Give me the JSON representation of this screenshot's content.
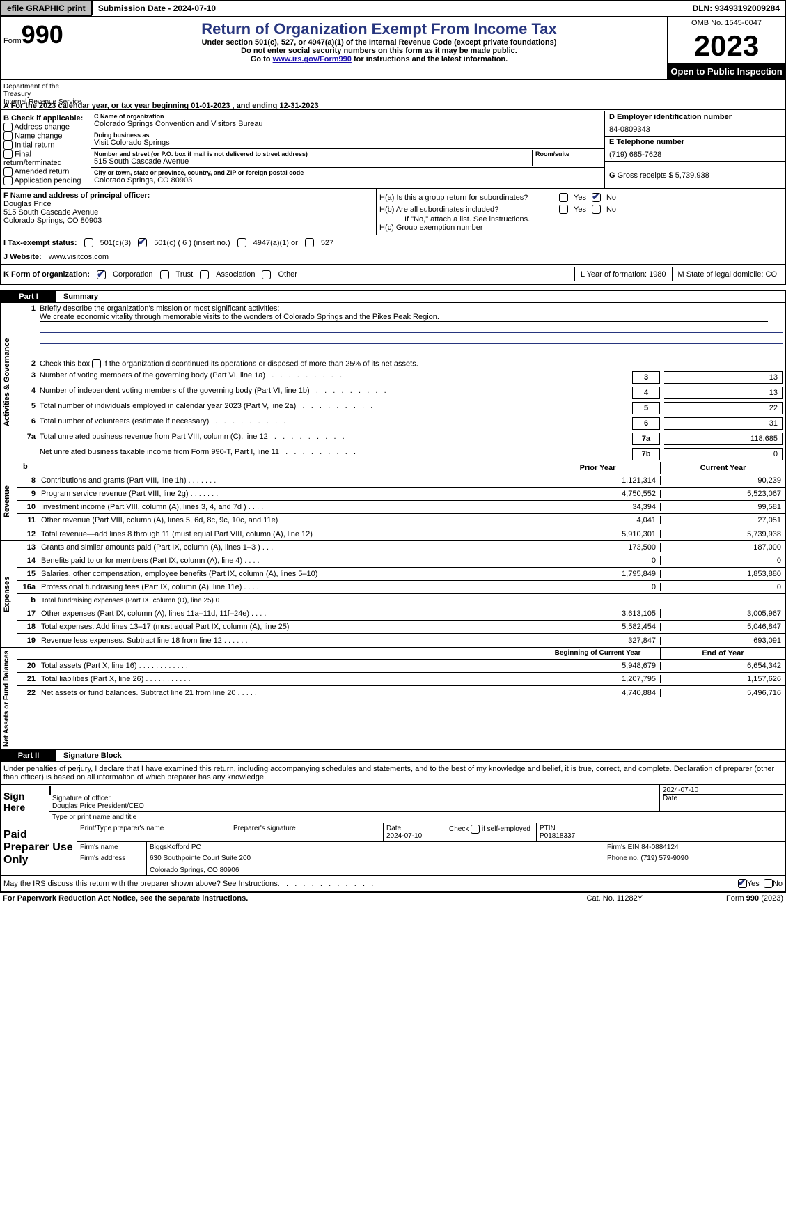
{
  "topbar": {
    "efile": "efile GRAPHIC print",
    "submission": "Submission Date - 2024-07-10",
    "dln": "DLN: 93493192009284"
  },
  "header": {
    "form_label": "Form",
    "form_num": "990",
    "title": "Return of Organization Exempt From Income Tax",
    "sub1": "Under section 501(c), 527, or 4947(a)(1) of the Internal Revenue Code (except private foundations)",
    "sub2": "Do not enter social security numbers on this form as it may be made public.",
    "sub3_pre": "Go to ",
    "sub3_link": "www.irs.gov/Form990",
    "sub3_post": " for instructions and the latest information.",
    "omb": "OMB No. 1545-0047",
    "year": "2023",
    "open": "Open to Public Inspection",
    "dept": "Department of the Treasury",
    "dept2": "Internal Revenue Service"
  },
  "row_a": "A For the 2023 calendar year, or tax year beginning 01-01-2023    , and ending 12-31-2023",
  "box_b": {
    "hdr": "B Check if applicable:",
    "opts": [
      "Address change",
      "Name change",
      "Initial return",
      "Final return/terminated",
      "Amended return",
      "Application pending"
    ]
  },
  "box_c": {
    "name_lbl": "C Name of organization",
    "name": "Colorado Springs Convention and Visitors Bureau",
    "dba_lbl": "Doing business as",
    "dba": "Visit Colorado Springs",
    "addr_lbl": "Number and street (or P.O. box if mail is not delivered to street address)",
    "room_lbl": "Room/suite",
    "addr": "515 South Cascade Avenue",
    "city_lbl": "City or town, state or province, country, and ZIP or foreign postal code",
    "city": "Colorado Springs, CO   80903"
  },
  "box_d": {
    "lbl": "D Employer identification number",
    "val": "84-0809343"
  },
  "box_e": {
    "lbl": "E Telephone number",
    "val": "(719) 685-7628"
  },
  "box_g": {
    "lbl": "G",
    "txt": "Gross receipts $ 5,739,938"
  },
  "box_f": {
    "lbl": "F  Name and address of principal officer:",
    "name": "Douglas Price",
    "addr1": "515 South Cascade Avenue",
    "addr2": "Colorado Springs, CO  80903"
  },
  "box_h": {
    "ha": "H(a)  Is this a group return for subordinates?",
    "hb": "H(b)  Are all subordinates included?",
    "hb_note": "If \"No,\" attach a list. See instructions.",
    "hc": "H(c)  Group exemption number",
    "yes": "Yes",
    "no": "No"
  },
  "tax_status": {
    "lbl": "I   Tax-exempt status:",
    "o1": "501(c)(3)",
    "o2": "501(c) ( 6 ) (insert no.)",
    "o3": "4947(a)(1) or",
    "o4": "527"
  },
  "website": {
    "lbl": "J   Website:",
    "val": "www.visitcos.com"
  },
  "row_k": {
    "lbl": "K Form of organization:",
    "opts": [
      "Corporation",
      "Trust",
      "Association",
      "Other"
    ],
    "l": "L Year of formation: 1980",
    "m": "M State of legal domicile: CO"
  },
  "part1": {
    "tab": "Part I",
    "title": "Summary"
  },
  "governance": {
    "label": "Activities & Governance",
    "l1_desc": "Briefly describe the organization's mission or most significant activities:",
    "l1_text": "We create economic vitality through memorable visits to the wonders of Colorado Springs and the Pikes Peak Region.",
    "l2": "Check this box        if the organization discontinued its operations or disposed of more than 25% of its net assets.",
    "lines": [
      {
        "n": "3",
        "d": "Number of voting members of the governing body (Part VI, line 1a)",
        "k": "3",
        "v": "13"
      },
      {
        "n": "4",
        "d": "Number of independent voting members of the governing body (Part VI, line 1b)",
        "k": "4",
        "v": "13"
      },
      {
        "n": "5",
        "d": "Total number of individuals employed in calendar year 2023 (Part V, line 2a)",
        "k": "5",
        "v": "22"
      },
      {
        "n": "6",
        "d": "Total number of volunteers (estimate if necessary)",
        "k": "6",
        "v": "31"
      },
      {
        "n": "7a",
        "d": "Total unrelated business revenue from Part VIII, column (C), line 12",
        "k": "7a",
        "v": "118,685"
      },
      {
        "n": "",
        "d": "Net unrelated business taxable income from Form 990-T, Part I, line 11",
        "k": "7b",
        "v": "0"
      }
    ]
  },
  "revenue": {
    "label": "Revenue",
    "hdr_b": "b",
    "hdr_prior": "Prior Year",
    "hdr_current": "Current Year",
    "lines": [
      {
        "n": "8",
        "d": "Contributions and grants (Part VIII, line 1h)   .    .    .    .    .    .    .",
        "a": "1,121,314",
        "b": "90,239"
      },
      {
        "n": "9",
        "d": "Program service revenue (Part VIII, line 2g)   .    .    .    .    .    .    .",
        "a": "4,750,552",
        "b": "5,523,067"
      },
      {
        "n": "10",
        "d": "Investment income (Part VIII, column (A), lines 3, 4, and 7d )   .    .    .    .",
        "a": "34,394",
        "b": "99,581"
      },
      {
        "n": "11",
        "d": "Other revenue (Part VIII, column (A), lines 5, 6d, 8c, 9c, 10c, and 11e)",
        "a": "4,041",
        "b": "27,051"
      },
      {
        "n": "12",
        "d": "Total revenue—add lines 8 through 11 (must equal Part VIII, column (A), line 12)",
        "a": "5,910,301",
        "b": "5,739,938"
      }
    ]
  },
  "expenses": {
    "label": "Expenses",
    "lines": [
      {
        "n": "13",
        "d": "Grants and similar amounts paid (Part IX, column (A), lines 1–3 )   .    .    .",
        "a": "173,500",
        "b": "187,000"
      },
      {
        "n": "14",
        "d": "Benefits paid to or for members (Part IX, column (A), line 4)   .    .    .    .",
        "a": "0",
        "b": "0"
      },
      {
        "n": "15",
        "d": "Salaries, other compensation, employee benefits (Part IX, column (A), lines 5–10)",
        "a": "1,795,849",
        "b": "1,853,880"
      },
      {
        "n": "16a",
        "d": "Professional fundraising fees (Part IX, column (A), line 11e)   .    .    .    .",
        "a": "0",
        "b": "0"
      },
      {
        "n": "b",
        "d": "Total fundraising expenses (Part IX, column (D), line 25) 0",
        "a": "",
        "b": "",
        "shaded": true,
        "small": true
      },
      {
        "n": "17",
        "d": "Other expenses (Part IX, column (A), lines 11a–11d, 11f–24e)   .    .    .    .",
        "a": "3,613,105",
        "b": "3,005,967"
      },
      {
        "n": "18",
        "d": "Total expenses. Add lines 13–17 (must equal Part IX, column (A), line 25)",
        "a": "5,582,454",
        "b": "5,046,847"
      },
      {
        "n": "19",
        "d": "Revenue less expenses. Subtract line 18 from line 12   .    .    .    .    .    .",
        "a": "327,847",
        "b": "693,091"
      }
    ]
  },
  "netassets": {
    "label": "Net Assets or Fund Balances",
    "hdr_a": "Beginning of Current Year",
    "hdr_b": "End of Year",
    "lines": [
      {
        "n": "20",
        "d": "Total assets (Part X, line 16)   .    .    .    .    .    .    .    .    .    .    .    .",
        "a": "5,948,679",
        "b": "6,654,342"
      },
      {
        "n": "21",
        "d": "Total liabilities (Part X, line 26)   .    .    .    .    .    .    .    .    .    .    .",
        "a": "1,207,795",
        "b": "1,157,626"
      },
      {
        "n": "22",
        "d": "Net assets or fund balances. Subtract line 21 from line 20   .    .    .    .    .",
        "a": "4,740,884",
        "b": "5,496,716"
      }
    ]
  },
  "part2": {
    "tab": "Part II",
    "title": "Signature Block",
    "text": "Under penalties of perjury, I declare that I have examined this return, including accompanying schedules and statements, and to the best of my knowledge and belief, it is true, correct, and complete. Declaration of preparer (other than officer) is based on all information of which preparer has any knowledge."
  },
  "sign": {
    "lbl": "Sign Here",
    "date": "2024-07-10",
    "sig_lbl": "Signature of officer",
    "name": "Douglas Price  President/CEO",
    "name_lbl": "Type or print name and title",
    "date_lbl": "Date"
  },
  "paid": {
    "lbl": "Paid Preparer Use Only",
    "h1": "Print/Type preparer's name",
    "h2": "Preparer's signature",
    "h3": "Date",
    "date": "2024-07-10",
    "h4": "Check          if self-employed",
    "h5": "PTIN",
    "ptin": "P01818337",
    "firm_lbl": "Firm's name",
    "firm": "BiggsKofford PC",
    "ein_lbl": "Firm's EIN",
    "ein": "84-0884124",
    "addr_lbl": "Firm's address",
    "addr1": "630 Southpointe Court Suite 200",
    "addr2": "Colorado Springs, CO  80906",
    "phone_lbl": "Phone no.",
    "phone": "(719) 579-9090"
  },
  "footer": {
    "q": "May the IRS discuss this return with the preparer shown above? See Instructions.",
    "yes": "Yes",
    "no": "No"
  },
  "bottom": {
    "l": "For Paperwork Reduction Act Notice, see the separate instructions.",
    "m": "Cat. No. 11282Y",
    "r": "Form 990 (2023)"
  }
}
